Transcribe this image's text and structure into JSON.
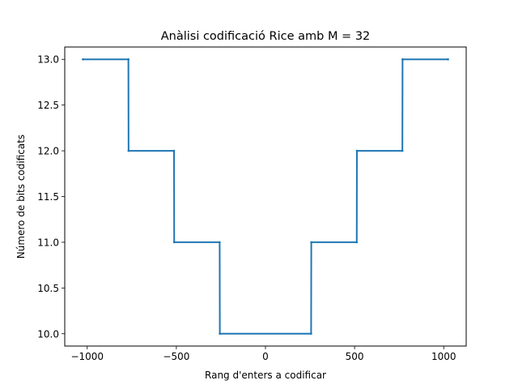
{
  "chart_data": {
    "type": "line",
    "title": "Anàlisi codificació Rice amb M = 32",
    "xlabel": "Rang d'enters a codificar",
    "ylabel": "Número de bits codificats",
    "xlim": [
      -1126,
      1126
    ],
    "ylim": [
      9.865,
      13.135
    ],
    "xticks": [
      -1000,
      -500,
      0,
      500,
      1000
    ],
    "xtick_labels": [
      "−1000",
      "−500",
      "0",
      "500",
      "1000"
    ],
    "yticks": [
      10.0,
      10.5,
      11.0,
      11.5,
      12.0,
      12.5,
      13.0
    ],
    "ytick_labels": [
      "10.0",
      "10.5",
      "11.0",
      "11.5",
      "12.0",
      "12.5",
      "13.0"
    ],
    "grid": false,
    "line_color": "#1f77b4",
    "series": [
      {
        "x": [
          -1024,
          -769,
          -768,
          -513,
          -512,
          -257,
          -256,
          256,
          257,
          512,
          513,
          768,
          769,
          1024
        ],
        "y": [
          13,
          13,
          12,
          12,
          11,
          11,
          10,
          10,
          11,
          11,
          12,
          12,
          13,
          13
        ]
      }
    ]
  }
}
